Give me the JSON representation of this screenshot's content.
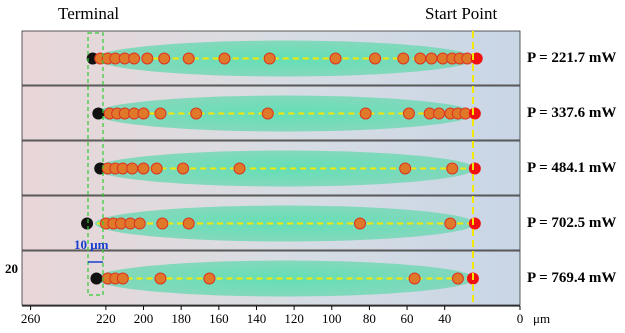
{
  "chart_data": {
    "type": "scatter",
    "annotations": {
      "terminal": "Terminal",
      "start": "Start Point",
      "scale_bar": "10 μm",
      "left_label": "20"
    },
    "x_unit": "μm",
    "xlim": [
      272,
      0
    ],
    "xticks": [
      260,
      220,
      200,
      180,
      160,
      140,
      120,
      100,
      80,
      60,
      40,
      0
    ],
    "panels": [
      {
        "label": "P = 221.7 mW",
        "terminal": 227,
        "start": 23,
        "points": [
          223,
          219,
          215,
          210,
          205,
          198,
          189,
          176,
          157,
          133,
          98,
          77,
          62,
          53,
          47,
          41,
          36,
          32,
          28
        ]
      },
      {
        "label": "P = 337.6 mW",
        "terminal": 224,
        "start": 24,
        "points": [
          218,
          214,
          210,
          205,
          200,
          191,
          172,
          134,
          82,
          59,
          48,
          43,
          37,
          33,
          29
        ]
      },
      {
        "label": "P = 484.1 mW",
        "terminal": 223,
        "start": 24,
        "points": [
          219,
          215,
          211,
          206,
          200,
          193,
          179,
          149,
          61,
          36
        ]
      },
      {
        "label": "P = 702.5 mW",
        "terminal": 230,
        "start": 24,
        "points": [
          220,
          216,
          212,
          207,
          202,
          190,
          176,
          85,
          37
        ]
      },
      {
        "label": "P = 769.4 mW",
        "terminal": 225,
        "start": 25,
        "points": [
          219,
          215,
          211,
          191,
          165,
          56,
          33
        ]
      }
    ]
  }
}
